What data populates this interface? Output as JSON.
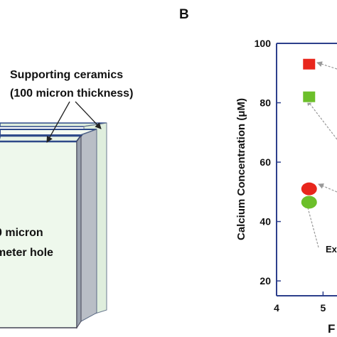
{
  "panel_a": {
    "label_line1": "Supporting ceramics",
    "label_line2": "(100 micron thickness)",
    "hole_line1": "0 micron",
    "hole_line2": "meter hole"
  },
  "panel_b": {
    "panel_letter": "B",
    "annotation_partial": "Ex",
    "xlabel_partial": "F"
  },
  "colors": {
    "plate_face": "#eef8ec",
    "plate_side": "#b9bec6",
    "plate_edge": "#2f4a8a",
    "red_marker": "#e8261c",
    "green_marker": "#6cbf2a"
  },
  "chart_data": {
    "type": "scatter",
    "ylabel": "Calcium Concentration (μM)",
    "xlabel": "",
    "xlim": [
      4,
      5.3
    ],
    "ylim": [
      15,
      100
    ],
    "x_ticks": [
      4,
      5
    ],
    "y_ticks": [
      20,
      40,
      60,
      80,
      100
    ],
    "points": [
      {
        "x": 4.7,
        "y": 93,
        "shape": "square",
        "color": "#e8261c"
      },
      {
        "x": 4.7,
        "y": 82,
        "shape": "square",
        "color": "#6cbf2a"
      },
      {
        "x": 4.7,
        "y": 51,
        "shape": "circle",
        "color": "#e8261c"
      },
      {
        "x": 4.7,
        "y": 46.5,
        "shape": "circle",
        "color": "#6cbf2a"
      }
    ]
  }
}
